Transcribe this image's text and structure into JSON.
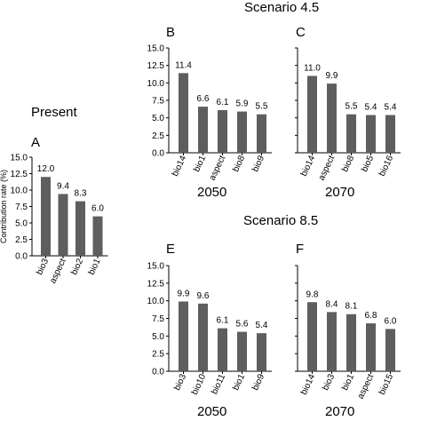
{
  "headings": {
    "scenario_45": "Scenario 4.5",
    "scenario_85": "Scenario 8.5",
    "present": "Present"
  },
  "colors": {
    "bar": "#5e5e5e",
    "axis": "#000000"
  },
  "chart_data": [
    {
      "id": "A",
      "type": "bar",
      "panel_label": "A",
      "group": "Present",
      "year": "",
      "ylabel": "Contribution rate (%)",
      "ylim": [
        0,
        15
      ],
      "yticks": [
        "0.0",
        "2.5",
        "5.0",
        "7.5",
        "10.0",
        "12.5",
        "15.0"
      ],
      "categories": [
        "bio3",
        "aspect",
        "bio2",
        "bio1"
      ],
      "values": [
        12.0,
        9.4,
        8.3,
        6.0
      ],
      "value_labels": [
        "12.0",
        "9.4",
        "8.3",
        "6.0"
      ]
    },
    {
      "id": "B",
      "type": "bar",
      "panel_label": "B",
      "group": "Scenario 4.5",
      "year": "2050",
      "ylabel": "",
      "ylim": [
        0,
        15
      ],
      "yticks": [
        "0.0",
        "2.5",
        "5.0",
        "7.5",
        "10.0",
        "12.5",
        "15.0"
      ],
      "categories": [
        "bio14",
        "bio1",
        "aspect",
        "bio8",
        "bio9"
      ],
      "values": [
        11.4,
        6.6,
        6.1,
        5.9,
        5.5
      ],
      "value_labels": [
        "11.4",
        "6.6",
        "6.1",
        "5.9",
        "5.5"
      ]
    },
    {
      "id": "C",
      "type": "bar",
      "panel_label": "C",
      "group": "Scenario 4.5",
      "year": "2070",
      "ylabel": "",
      "ylim": [
        0,
        15
      ],
      "categories": [
        "bio14",
        "aspect",
        "bio8",
        "bio5",
        "bio16"
      ],
      "values": [
        11.0,
        9.9,
        5.5,
        5.4,
        5.4
      ],
      "value_labels": [
        "11.0",
        "9.9",
        "5.5",
        "5.4",
        "5.4"
      ]
    },
    {
      "id": "E",
      "type": "bar",
      "panel_label": "E",
      "group": "Scenario 8.5",
      "year": "2050",
      "ylabel": "",
      "ylim": [
        0,
        15
      ],
      "yticks": [
        "0.0",
        "2.5",
        "5.0",
        "7.5",
        "10.0",
        "12.5",
        "15.0"
      ],
      "categories": [
        "bio3",
        "bio10",
        "bio11",
        "bio1",
        "bio9"
      ],
      "values": [
        9.9,
        9.6,
        6.1,
        5.6,
        5.4
      ],
      "value_labels": [
        "9.9",
        "9.6",
        "6.1",
        "5.6",
        "5.4"
      ]
    },
    {
      "id": "F",
      "type": "bar",
      "panel_label": "F",
      "group": "Scenario 8.5",
      "year": "2070",
      "ylabel": "",
      "ylim": [
        0,
        15
      ],
      "categories": [
        "bio14",
        "bio3",
        "bio1",
        "aspect",
        "bio15"
      ],
      "values": [
        9.8,
        8.4,
        8.1,
        6.8,
        6.0
      ],
      "value_labels": [
        "9.8",
        "8.4",
        "8.1",
        "6.8",
        "6.0"
      ]
    }
  ]
}
